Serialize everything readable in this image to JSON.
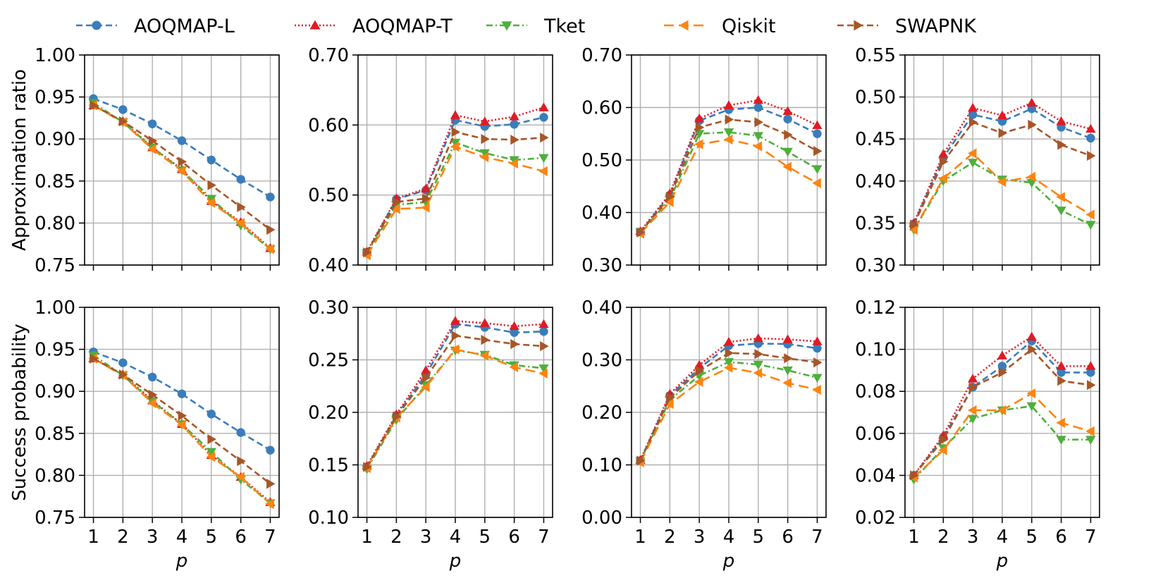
{
  "figure": {
    "row_labels": [
      "Approximation ratio",
      "Success probability"
    ],
    "xlabel": "p"
  },
  "legend": [
    {
      "name": "AOQMAP-L",
      "color": "#3a7dba",
      "dash": "dashed",
      "marker": "circle"
    },
    {
      "name": "AOQMAP-T",
      "color": "#e01b24",
      "dash": "dotted",
      "marker": "triangle-up"
    },
    {
      "name": "Tket",
      "color": "#4daf3c",
      "dash": "dashdot",
      "marker": "triangle-down"
    },
    {
      "name": "Qiskit",
      "color": "#ff8410",
      "dash": "longdash",
      "marker": "triangle-left"
    },
    {
      "name": "SWAPNK",
      "color": "#a65628",
      "dash": "dashed",
      "marker": "triangle-right"
    }
  ],
  "chart_data": [
    {
      "type": "line",
      "row": 0,
      "col": 0,
      "x": [
        1,
        2,
        3,
        4,
        5,
        6,
        7
      ],
      "ylabel": "Approximation ratio",
      "xlabel": "",
      "ylim": [
        0.75,
        1.0
      ],
      "yticks": [
        "0.75",
        "0.80",
        "0.85",
        "0.90",
        "0.95",
        "1.00"
      ],
      "xticks": [],
      "grid": true,
      "series": [
        {
          "name": "AOQMAP-L",
          "values": [
            0.948,
            0.935,
            0.918,
            0.898,
            0.875,
            0.852,
            0.831
          ]
        },
        {
          "name": "AOQMAP-T",
          "values": [
            0.94,
            0.921,
            0.89,
            0.864,
            0.826,
            0.801,
            0.77
          ]
        },
        {
          "name": "Tket",
          "values": [
            0.943,
            0.92,
            0.89,
            0.863,
            0.829,
            0.797,
            0.769
          ]
        },
        {
          "name": "Qiskit",
          "values": [
            0.94,
            0.92,
            0.888,
            0.862,
            0.824,
            0.8,
            0.769
          ]
        },
        {
          "name": "SWAPNK",
          "values": [
            0.94,
            0.921,
            0.898,
            0.873,
            0.845,
            0.819,
            0.792
          ]
        }
      ]
    },
    {
      "type": "line",
      "row": 0,
      "col": 1,
      "x": [
        1,
        2,
        3,
        4,
        5,
        6,
        7
      ],
      "ylabel": "",
      "xlabel": "",
      "ylim": [
        0.4,
        0.7
      ],
      "yticks": [
        "0.40",
        "0.50",
        "0.60",
        "0.70"
      ],
      "xticks": [],
      "grid": true,
      "series": [
        {
          "name": "AOQMAP-L",
          "values": [
            0.418,
            0.494,
            0.507,
            0.607,
            0.598,
            0.601,
            0.611
          ]
        },
        {
          "name": "AOQMAP-T",
          "values": [
            0.419,
            0.495,
            0.509,
            0.614,
            0.605,
            0.612,
            0.625
          ]
        },
        {
          "name": "Tket",
          "values": [
            0.417,
            0.486,
            0.49,
            0.575,
            0.56,
            0.55,
            0.553
          ]
        },
        {
          "name": "Qiskit",
          "values": [
            0.414,
            0.48,
            0.482,
            0.569,
            0.554,
            0.545,
            0.534
          ]
        },
        {
          "name": "SWAPNK",
          "values": [
            0.418,
            0.49,
            0.495,
            0.59,
            0.58,
            0.579,
            0.582
          ]
        }
      ]
    },
    {
      "type": "line",
      "row": 0,
      "col": 2,
      "x": [
        1,
        2,
        3,
        4,
        5,
        6,
        7
      ],
      "ylabel": "",
      "xlabel": "",
      "ylim": [
        0.3,
        0.7
      ],
      "yticks": [
        "0.30",
        "0.40",
        "0.50",
        "0.60",
        "0.70"
      ],
      "xticks": [],
      "grid": true,
      "series": [
        {
          "name": "AOQMAP-L",
          "values": [
            0.363,
            0.433,
            0.575,
            0.596,
            0.6,
            0.578,
            0.55
          ]
        },
        {
          "name": "AOQMAP-T",
          "values": [
            0.364,
            0.436,
            0.579,
            0.604,
            0.614,
            0.593,
            0.566
          ]
        },
        {
          "name": "Tket",
          "values": [
            0.362,
            0.425,
            0.55,
            0.553,
            0.546,
            0.516,
            0.483
          ]
        },
        {
          "name": "Qiskit",
          "values": [
            0.36,
            0.42,
            0.53,
            0.539,
            0.526,
            0.487,
            0.456
          ]
        },
        {
          "name": "SWAPNK",
          "values": [
            0.362,
            0.43,
            0.562,
            0.577,
            0.572,
            0.548,
            0.517
          ]
        }
      ]
    },
    {
      "type": "line",
      "row": 0,
      "col": 3,
      "x": [
        1,
        2,
        3,
        4,
        5,
        6,
        7
      ],
      "ylabel": "",
      "xlabel": "",
      "ylim": [
        0.3,
        0.55
      ],
      "yticks": [
        "0.30",
        "0.35",
        "0.40",
        "0.45",
        "0.50",
        "0.55"
      ],
      "xticks": [],
      "grid": true,
      "series": [
        {
          "name": "AOQMAP-L",
          "values": [
            0.349,
            0.428,
            0.479,
            0.471,
            0.486,
            0.464,
            0.451
          ]
        },
        {
          "name": "AOQMAP-T",
          "values": [
            0.35,
            0.432,
            0.487,
            0.478,
            0.493,
            0.471,
            0.462
          ]
        },
        {
          "name": "Tket",
          "values": [
            0.342,
            0.4,
            0.422,
            0.402,
            0.398,
            0.365,
            0.348
          ]
        },
        {
          "name": "Qiskit",
          "values": [
            0.342,
            0.403,
            0.433,
            0.399,
            0.405,
            0.381,
            0.36
          ]
        },
        {
          "name": "SWAPNK",
          "values": [
            0.348,
            0.423,
            0.47,
            0.457,
            0.467,
            0.443,
            0.43
          ]
        }
      ]
    },
    {
      "type": "line",
      "row": 1,
      "col": 0,
      "x": [
        1,
        2,
        3,
        4,
        5,
        6,
        7
      ],
      "ylabel": "Success probability",
      "xlabel": "p",
      "ylim": [
        0.75,
        1.0
      ],
      "yticks": [
        "0.75",
        "0.80",
        "0.85",
        "0.90",
        "0.95",
        "1.00"
      ],
      "xticks": [
        "1",
        "2",
        "3",
        "4",
        "5",
        "6",
        "7"
      ],
      "grid": true,
      "series": [
        {
          "name": "AOQMAP-L",
          "values": [
            0.947,
            0.934,
            0.917,
            0.897,
            0.873,
            0.851,
            0.83
          ]
        },
        {
          "name": "AOQMAP-T",
          "values": [
            0.939,
            0.92,
            0.889,
            0.861,
            0.824,
            0.798,
            0.768
          ]
        },
        {
          "name": "Tket",
          "values": [
            0.943,
            0.919,
            0.888,
            0.861,
            0.828,
            0.795,
            0.767
          ]
        },
        {
          "name": "Qiskit",
          "values": [
            0.939,
            0.919,
            0.886,
            0.86,
            0.822,
            0.798,
            0.766
          ]
        },
        {
          "name": "SWAPNK",
          "values": [
            0.939,
            0.92,
            0.896,
            0.871,
            0.843,
            0.817,
            0.79
          ]
        }
      ]
    },
    {
      "type": "line",
      "row": 1,
      "col": 1,
      "x": [
        1,
        2,
        3,
        4,
        5,
        6,
        7
      ],
      "ylabel": "",
      "xlabel": "p",
      "ylim": [
        0.1,
        0.3
      ],
      "yticks": [
        "0.10",
        "0.15",
        "0.20",
        "0.25",
        "0.30"
      ],
      "xticks": [
        "1",
        "2",
        "3",
        "4",
        "5",
        "6",
        "7"
      ],
      "grid": true,
      "series": [
        {
          "name": "AOQMAP-L",
          "values": [
            0.148,
            0.197,
            0.236,
            0.284,
            0.281,
            0.276,
            0.277
          ]
        },
        {
          "name": "AOQMAP-T",
          "values": [
            0.149,
            0.198,
            0.24,
            0.287,
            0.285,
            0.282,
            0.284
          ]
        },
        {
          "name": "Tket",
          "values": [
            0.146,
            0.193,
            0.226,
            0.259,
            0.255,
            0.245,
            0.242
          ]
        },
        {
          "name": "Qiskit",
          "values": [
            0.147,
            0.195,
            0.224,
            0.26,
            0.254,
            0.243,
            0.237
          ]
        },
        {
          "name": "SWAPNK",
          "values": [
            0.148,
            0.196,
            0.233,
            0.273,
            0.269,
            0.265,
            0.263
          ]
        }
      ]
    },
    {
      "type": "line",
      "row": 1,
      "col": 2,
      "x": [
        1,
        2,
        3,
        4,
        5,
        6,
        7
      ],
      "ylabel": "",
      "xlabel": "p",
      "ylim": [
        0.0,
        0.4
      ],
      "yticks": [
        "0.00",
        "0.10",
        "0.20",
        "0.30",
        "0.40"
      ],
      "xticks": [
        "1",
        "2",
        "3",
        "4",
        "5",
        "6",
        "7"
      ],
      "grid": true,
      "series": [
        {
          "name": "AOQMAP-L",
          "values": [
            0.108,
            0.232,
            0.284,
            0.327,
            0.331,
            0.33,
            0.322
          ]
        },
        {
          "name": "AOQMAP-T",
          "values": [
            0.109,
            0.235,
            0.29,
            0.334,
            0.341,
            0.339,
            0.335
          ]
        },
        {
          "name": "Tket",
          "values": [
            0.107,
            0.224,
            0.27,
            0.296,
            0.291,
            0.28,
            0.266
          ]
        },
        {
          "name": "Qiskit",
          "values": [
            0.105,
            0.216,
            0.258,
            0.285,
            0.275,
            0.256,
            0.243
          ]
        },
        {
          "name": "SWAPNK",
          "values": [
            0.108,
            0.228,
            0.279,
            0.313,
            0.311,
            0.303,
            0.295
          ]
        }
      ]
    },
    {
      "type": "line",
      "row": 1,
      "col": 3,
      "x": [
        1,
        2,
        3,
        4,
        5,
        6,
        7
      ],
      "ylabel": "",
      "xlabel": "p",
      "ylim": [
        0.02,
        0.12
      ],
      "yticks": [
        "0.02",
        "0.04",
        "0.06",
        "0.08",
        "0.10",
        "0.12"
      ],
      "xticks": [
        "1",
        "2",
        "3",
        "4",
        "5",
        "6",
        "7"
      ],
      "grid": true,
      "series": [
        {
          "name": "AOQMAP-L",
          "values": [
            0.04,
            0.058,
            0.082,
            0.092,
            0.104,
            0.089,
            0.089
          ]
        },
        {
          "name": "AOQMAP-T",
          "values": [
            0.04,
            0.059,
            0.086,
            0.097,
            0.106,
            0.092,
            0.092
          ]
        },
        {
          "name": "Tket",
          "values": [
            0.038,
            0.053,
            0.067,
            0.071,
            0.073,
            0.057,
            0.057
          ]
        },
        {
          "name": "Qiskit",
          "values": [
            0.039,
            0.052,
            0.071,
            0.071,
            0.079,
            0.065,
            0.061
          ]
        },
        {
          "name": "SWAPNK",
          "values": [
            0.04,
            0.057,
            0.082,
            0.089,
            0.1,
            0.085,
            0.083
          ]
        }
      ]
    }
  ]
}
